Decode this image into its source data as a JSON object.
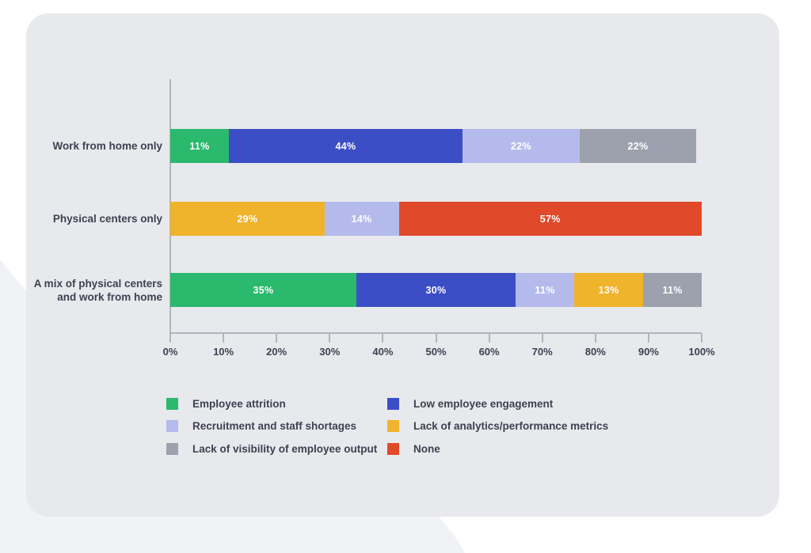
{
  "page": {
    "background_color": "#ffffff",
    "card_color": "#e8e9ed",
    "blob_color": "#f1f2f5",
    "axis_color": "#b3b5bd",
    "text_color": "#3e4151"
  },
  "chart_data": {
    "type": "bar",
    "orientation": "horizontal",
    "stacked": true,
    "title": "",
    "xlabel": "",
    "ylabel": "",
    "xlim": [
      0,
      100
    ],
    "grid": false,
    "value_suffix": "%",
    "x_ticks": [
      "0%",
      "10%",
      "20%",
      "30%",
      "40%",
      "50%",
      "60%",
      "70%",
      "80%",
      "90%",
      "100%"
    ],
    "categories": [
      "Work from home only",
      "Physical centers only",
      "A mix of physical centers and work from home"
    ],
    "series": [
      {
        "name": "Employee attrition",
        "color": "#2ab96d",
        "values": [
          11,
          0,
          35
        ]
      },
      {
        "name": "Low employee engagement",
        "color": "#3c4ec6",
        "values": [
          44,
          0,
          30
        ]
      },
      {
        "name": "Recruitment and staff shortages",
        "color": "#b4bbec",
        "values": [
          22,
          14,
          11
        ]
      },
      {
        "name": "Lack of analytics/performance metrics",
        "color": "#f0b32c",
        "values": [
          0,
          29,
          13
        ]
      },
      {
        "name": "Lack of visibility of employee output",
        "color": "#9da1ae",
        "values": [
          22,
          0,
          11
        ]
      },
      {
        "name": "None",
        "color": "#e0492a",
        "values": [
          0,
          57,
          0
        ]
      }
    ],
    "rows": [
      {
        "label": "Work from home only",
        "segments": [
          {
            "series": "Employee attrition",
            "value": 11,
            "text": "11%"
          },
          {
            "series": "Low employee engagement",
            "value": 44,
            "text": "44%"
          },
          {
            "series": "Recruitment and staff shortages",
            "value": 22,
            "text": "22%"
          },
          {
            "series": "Lack of visibility of employee output",
            "value": 22,
            "text": "22%"
          }
        ]
      },
      {
        "label": "Physical centers only",
        "segments": [
          {
            "series": "Lack of analytics/performance metrics",
            "value": 29,
            "text": "29%"
          },
          {
            "series": "Recruitment and staff shortages",
            "value": 14,
            "text": "14%"
          },
          {
            "series": "None",
            "value": 57,
            "text": "57%"
          }
        ]
      },
      {
        "label": "A mix of physical centers and work from home",
        "segments": [
          {
            "series": "Employee attrition",
            "value": 35,
            "text": "35%"
          },
          {
            "series": "Low employee engagement",
            "value": 30,
            "text": "30%"
          },
          {
            "series": "Recruitment and staff shortages",
            "value": 11,
            "text": "11%"
          },
          {
            "series": "Lack of analytics/performance metrics",
            "value": 13,
            "text": "13%"
          },
          {
            "series": "Lack of visibility of employee output",
            "value": 11,
            "text": "11%"
          }
        ]
      }
    ],
    "legend": {
      "position": "bottom",
      "columns": 2,
      "items": [
        "Employee attrition",
        "Low employee engagement",
        "Recruitment and staff shortages",
        "Lack of analytics/performance metrics",
        "Lack of visibility of employee output",
        "None"
      ]
    }
  }
}
